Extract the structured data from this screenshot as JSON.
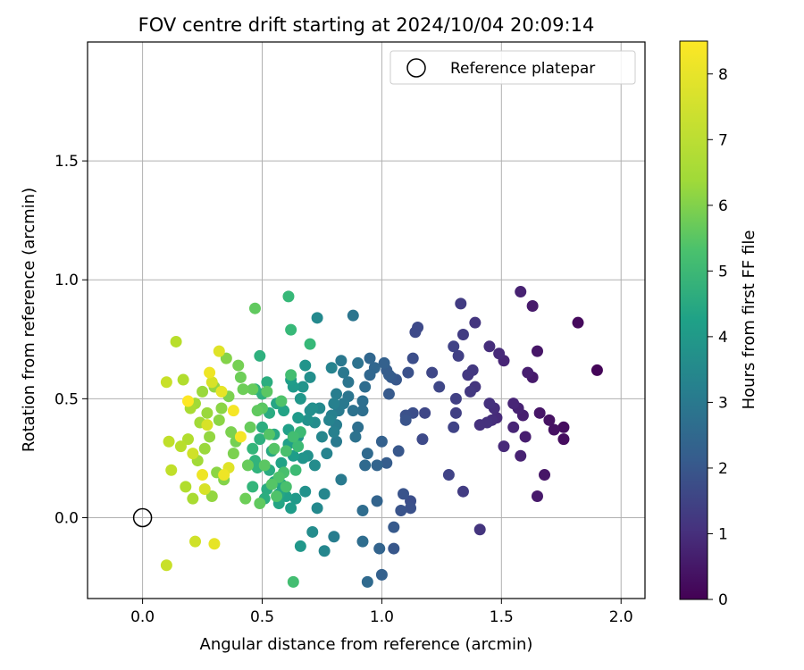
{
  "chart_data": {
    "type": "scatter",
    "title": "FOV centre drift starting at 2024/10/04 20:09:14",
    "xlabel": "Angular distance from reference (arcmin)",
    "ylabel": "Rotation from reference (arcmin)",
    "xlim": [
      -0.23,
      2.1
    ],
    "ylim": [
      -0.34,
      2.0
    ],
    "xticks": [
      0.0,
      0.5,
      1.0,
      1.5,
      2.0
    ],
    "xtick_labels": [
      "0.0",
      "0.5",
      "1.0",
      "1.5",
      "2.0"
    ],
    "yticks": [
      0.0,
      0.5,
      1.0,
      1.5
    ],
    "ytick_labels": [
      "0.0",
      "0.5",
      "1.0",
      "1.5"
    ],
    "grid": true,
    "legend": {
      "position": "upper-right",
      "label": "Reference platepar"
    },
    "reference_point": {
      "x": 0.0,
      "y": 0.0
    },
    "colorbar": {
      "label": "Hours from first FF file",
      "range": [
        0,
        8.5
      ],
      "ticks": [
        0,
        1,
        2,
        3,
        4,
        5,
        6,
        7,
        8
      ],
      "tick_labels": [
        "0",
        "1",
        "2",
        "3",
        "4",
        "5",
        "6",
        "7",
        "8"
      ],
      "colormap": "viridis"
    },
    "points": [
      [
        1.9,
        0.62,
        0.1
      ],
      [
        1.82,
        0.82,
        0.2
      ],
      [
        1.76,
        0.38,
        0.3
      ],
      [
        1.76,
        0.33,
        0.3
      ],
      [
        1.72,
        0.37,
        0.4
      ],
      [
        1.7,
        0.41,
        0.4
      ],
      [
        1.68,
        0.18,
        0.5
      ],
      [
        1.66,
        0.44,
        0.5
      ],
      [
        1.65,
        0.7,
        0.5
      ],
      [
        1.65,
        0.09,
        0.6
      ],
      [
        1.63,
        0.89,
        0.6
      ],
      [
        1.63,
        0.59,
        0.6
      ],
      [
        1.61,
        0.61,
        0.7
      ],
      [
        1.6,
        0.34,
        0.7
      ],
      [
        1.59,
        0.43,
        0.7
      ],
      [
        1.58,
        0.95,
        0.8
      ],
      [
        1.58,
        0.26,
        0.8
      ],
      [
        1.57,
        0.46,
        0.8
      ],
      [
        1.55,
        0.48,
        0.9
      ],
      [
        1.55,
        0.38,
        0.9
      ],
      [
        1.51,
        0.66,
        0.9
      ],
      [
        1.51,
        0.3,
        1.0
      ],
      [
        1.49,
        0.69,
        1.0
      ],
      [
        1.48,
        0.42,
        1.0
      ],
      [
        1.47,
        0.46,
        1.1
      ],
      [
        1.46,
        0.41,
        1.1
      ],
      [
        1.45,
        0.72,
        1.1
      ],
      [
        1.45,
        0.48,
        1.2
      ],
      [
        1.44,
        0.4,
        1.2
      ],
      [
        1.41,
        0.39,
        1.2
      ],
      [
        1.41,
        -0.05,
        1.3
      ],
      [
        1.39,
        0.82,
        1.3
      ],
      [
        1.39,
        0.55,
        1.3
      ],
      [
        1.38,
        0.62,
        1.4
      ],
      [
        1.37,
        0.53,
        1.4
      ],
      [
        1.36,
        0.6,
        1.4
      ],
      [
        1.34,
        0.11,
        1.5
      ],
      [
        1.34,
        0.77,
        1.5
      ],
      [
        1.33,
        0.9,
        1.5
      ],
      [
        1.32,
        0.68,
        1.6
      ],
      [
        1.31,
        0.5,
        1.6
      ],
      [
        1.31,
        0.44,
        1.6
      ],
      [
        1.3,
        0.72,
        1.7
      ],
      [
        1.3,
        0.38,
        1.7
      ],
      [
        1.28,
        0.18,
        1.7
      ],
      [
        1.24,
        0.55,
        1.8
      ],
      [
        1.21,
        0.61,
        1.8
      ],
      [
        1.18,
        0.44,
        1.8
      ],
      [
        1.17,
        0.33,
        1.9
      ],
      [
        1.15,
        0.8,
        1.9
      ],
      [
        1.14,
        0.78,
        1.9
      ],
      [
        1.13,
        0.67,
        2.0
      ],
      [
        1.13,
        0.44,
        2.0
      ],
      [
        1.12,
        0.07,
        2.0
      ],
      [
        1.12,
        0.04,
        2.1
      ],
      [
        1.11,
        0.61,
        2.1
      ],
      [
        1.1,
        0.43,
        2.1
      ],
      [
        1.1,
        0.41,
        2.2
      ],
      [
        1.09,
        0.1,
        2.2
      ],
      [
        1.08,
        0.03,
        2.2
      ],
      [
        1.07,
        0.28,
        2.3
      ],
      [
        1.06,
        0.58,
        2.3
      ],
      [
        1.05,
        -0.13,
        2.3
      ],
      [
        1.05,
        -0.04,
        2.4
      ],
      [
        1.04,
        0.59,
        2.4
      ],
      [
        1.03,
        0.52,
        2.4
      ],
      [
        1.03,
        0.6,
        2.5
      ],
      [
        1.02,
        0.23,
        2.5
      ],
      [
        1.02,
        0.62,
        2.5
      ],
      [
        1.01,
        0.65,
        2.6
      ],
      [
        1.0,
        0.32,
        2.6
      ],
      [
        1.0,
        -0.24,
        2.6
      ],
      [
        0.99,
        -0.13,
        2.7
      ],
      [
        0.98,
        0.07,
        2.7
      ],
      [
        0.98,
        0.22,
        2.7
      ],
      [
        0.97,
        0.63,
        2.8
      ],
      [
        0.95,
        0.6,
        2.8
      ],
      [
        0.95,
        0.67,
        2.8
      ],
      [
        0.94,
        -0.27,
        2.9
      ],
      [
        0.94,
        0.27,
        2.9
      ],
      [
        0.93,
        0.22,
        2.9
      ],
      [
        0.93,
        0.55,
        3.0
      ],
      [
        0.92,
        -0.1,
        3.0
      ],
      [
        0.92,
        0.03,
        3.0
      ],
      [
        0.92,
        0.45,
        3.1
      ],
      [
        0.92,
        0.49,
        3.1
      ],
      [
        0.9,
        0.38,
        3.1
      ],
      [
        0.9,
        0.65,
        3.2
      ],
      [
        0.89,
        0.34,
        3.2
      ],
      [
        0.88,
        0.45,
        3.2
      ],
      [
        0.88,
        0.85,
        3.3
      ],
      [
        0.86,
        0.51,
        3.3
      ],
      [
        0.86,
        0.57,
        3.3
      ],
      [
        0.84,
        0.61,
        3.4
      ],
      [
        0.84,
        0.48,
        3.4
      ],
      [
        0.83,
        0.66,
        3.4
      ],
      [
        0.83,
        0.16,
        3.5
      ],
      [
        0.82,
        0.45,
        3.5
      ],
      [
        0.81,
        0.32,
        3.5
      ],
      [
        0.81,
        0.39,
        3.6
      ],
      [
        0.81,
        0.52,
        3.6
      ],
      [
        0.8,
        -0.08,
        3.6
      ],
      [
        0.8,
        0.36,
        3.7
      ],
      [
        0.8,
        0.48,
        3.7
      ],
      [
        0.79,
        0.43,
        3.7
      ],
      [
        0.79,
        0.63,
        3.8
      ],
      [
        0.78,
        0.41,
        3.8
      ],
      [
        0.77,
        0.27,
        3.8
      ],
      [
        0.76,
        0.1,
        3.9
      ],
      [
        0.76,
        -0.14,
        3.9
      ],
      [
        0.75,
        0.34,
        3.9
      ],
      [
        0.74,
        0.46,
        4.0
      ],
      [
        0.73,
        0.04,
        4.0
      ],
      [
        0.73,
        0.84,
        4.0
      ],
      [
        0.72,
        0.22,
        4.1
      ],
      [
        0.72,
        0.4,
        4.1
      ],
      [
        0.71,
        -0.06,
        4.1
      ],
      [
        0.71,
        0.46,
        4.2
      ],
      [
        0.7,
        0.45,
        4.2
      ],
      [
        0.7,
        0.59,
        4.2
      ],
      [
        0.69,
        0.26,
        4.3
      ],
      [
        0.69,
        0.41,
        4.3
      ],
      [
        0.68,
        0.11,
        4.3
      ],
      [
        0.68,
        0.64,
        4.4
      ],
      [
        0.67,
        0.25,
        4.4
      ],
      [
        0.67,
        0.55,
        4.4
      ],
      [
        0.66,
        0.5,
        4.5
      ],
      [
        0.66,
        -0.12,
        4.5
      ],
      [
        0.65,
        0.34,
        4.5
      ],
      [
        0.65,
        0.42,
        4.6
      ],
      [
        0.64,
        0.08,
        4.6
      ],
      [
        0.63,
        0.55,
        4.6
      ],
      [
        0.63,
        0.26,
        4.7
      ],
      [
        0.62,
        0.58,
        4.7
      ],
      [
        0.62,
        0.04,
        4.7
      ],
      [
        0.61,
        0.37,
        4.8
      ],
      [
        0.61,
        0.31,
        4.8
      ],
      [
        0.6,
        0.09,
        4.8
      ],
      [
        0.59,
        0.45,
        4.9
      ],
      [
        0.58,
        0.23,
        4.9
      ],
      [
        0.58,
        0.14,
        4.9
      ],
      [
        0.57,
        0.06,
        5.0
      ],
      [
        0.57,
        0.1,
        5.0
      ],
      [
        0.56,
        0.48,
        5.0
      ],
      [
        0.55,
        0.35,
        5.1
      ],
      [
        0.55,
        0.15,
        5.1
      ],
      [
        0.54,
        0.28,
        5.1
      ],
      [
        0.53,
        0.44,
        5.2
      ],
      [
        0.53,
        0.2,
        5.2
      ],
      [
        0.52,
        0.12,
        5.2
      ],
      [
        0.52,
        0.57,
        5.3
      ],
      [
        0.51,
        0.08,
        5.3
      ],
      [
        0.5,
        0.38,
        5.3
      ],
      [
        0.5,
        0.52,
        5.4
      ],
      [
        0.49,
        0.68,
        5.4
      ],
      [
        0.49,
        0.33,
        5.4
      ],
      [
        0.48,
        0.21,
        5.5
      ],
      [
        0.47,
        0.54,
        5.5
      ],
      [
        0.47,
        0.24,
        5.5
      ],
      [
        0.46,
        0.29,
        5.6
      ],
      [
        0.46,
        0.13,
        5.6
      ],
      [
        0.62,
        0.79,
        5.7
      ],
      [
        0.61,
        0.93,
        5.7
      ],
      [
        0.7,
        0.73,
        5.7
      ],
      [
        0.66,
        0.36,
        5.8
      ],
      [
        0.65,
        0.3,
        5.8
      ],
      [
        0.64,
        0.2,
        5.8
      ],
      [
        0.63,
        0.34,
        5.9
      ],
      [
        0.62,
        0.6,
        5.9
      ],
      [
        0.63,
        -0.27,
        5.9
      ],
      [
        0.6,
        0.13,
        6.0
      ],
      [
        0.6,
        0.28,
        6.0
      ],
      [
        0.59,
        0.19,
        6.0
      ],
      [
        0.58,
        0.49,
        6.1
      ],
      [
        0.57,
        0.17,
        6.1
      ],
      [
        0.56,
        0.09,
        6.1
      ],
      [
        0.55,
        0.29,
        6.2
      ],
      [
        0.54,
        0.14,
        6.2
      ],
      [
        0.53,
        0.35,
        6.2
      ],
      [
        0.52,
        0.53,
        6.3
      ],
      [
        0.51,
        0.22,
        6.3
      ],
      [
        0.5,
        0.46,
        6.3
      ],
      [
        0.49,
        0.06,
        6.4
      ],
      [
        0.48,
        0.45,
        6.4
      ],
      [
        0.47,
        0.88,
        6.4
      ],
      [
        0.46,
        0.54,
        6.5
      ],
      [
        0.45,
        0.38,
        6.5
      ],
      [
        0.44,
        0.22,
        6.5
      ],
      [
        0.43,
        0.08,
        6.6
      ],
      [
        0.42,
        0.54,
        6.6
      ],
      [
        0.41,
        0.59,
        6.6
      ],
      [
        0.4,
        0.64,
        6.7
      ],
      [
        0.39,
        0.32,
        6.7
      ],
      [
        0.38,
        0.27,
        6.8
      ],
      [
        0.37,
        0.36,
        6.8
      ],
      [
        0.36,
        0.51,
        6.8
      ],
      [
        0.35,
        0.67,
        6.9
      ],
      [
        0.34,
        0.16,
        6.9
      ],
      [
        0.33,
        0.46,
        7.0
      ],
      [
        0.32,
        0.41,
        7.0
      ],
      [
        0.31,
        0.19,
        7.0
      ],
      [
        0.3,
        0.55,
        7.1
      ],
      [
        0.29,
        0.09,
        7.1
      ],
      [
        0.28,
        0.34,
        7.1
      ],
      [
        0.27,
        0.44,
        7.2
      ],
      [
        0.26,
        0.29,
        7.2
      ],
      [
        0.25,
        0.53,
        7.2
      ],
      [
        0.24,
        0.4,
        7.3
      ],
      [
        0.23,
        0.24,
        7.3
      ],
      [
        0.22,
        0.48,
        7.3
      ],
      [
        0.21,
        0.08,
        7.4
      ],
      [
        0.2,
        0.46,
        7.4
      ],
      [
        0.19,
        0.33,
        7.5
      ],
      [
        0.18,
        0.13,
        7.5
      ],
      [
        0.17,
        0.58,
        7.5
      ],
      [
        0.16,
        0.3,
        7.6
      ],
      [
        0.14,
        0.74,
        7.6
      ],
      [
        0.12,
        0.2,
        7.7
      ],
      [
        0.11,
        0.32,
        7.7
      ],
      [
        0.1,
        0.57,
        7.8
      ],
      [
        0.1,
        -0.2,
        7.8
      ],
      [
        0.21,
        0.27,
        7.9
      ],
      [
        0.22,
        -0.1,
        7.9
      ],
      [
        0.26,
        0.12,
        8.0
      ],
      [
        0.27,
        0.39,
        8.0
      ],
      [
        0.29,
        0.57,
        8.0
      ],
      [
        0.32,
        0.7,
        8.1
      ],
      [
        0.36,
        0.21,
        8.1
      ],
      [
        0.3,
        -0.11,
        8.2
      ],
      [
        0.33,
        0.53,
        8.2
      ],
      [
        0.34,
        0.18,
        8.3
      ],
      [
        0.28,
        0.61,
        8.3
      ],
      [
        0.25,
        0.18,
        8.3
      ],
      [
        0.41,
        0.34,
        8.4
      ],
      [
        0.38,
        0.45,
        8.4
      ],
      [
        0.19,
        0.49,
        8.5
      ]
    ]
  }
}
